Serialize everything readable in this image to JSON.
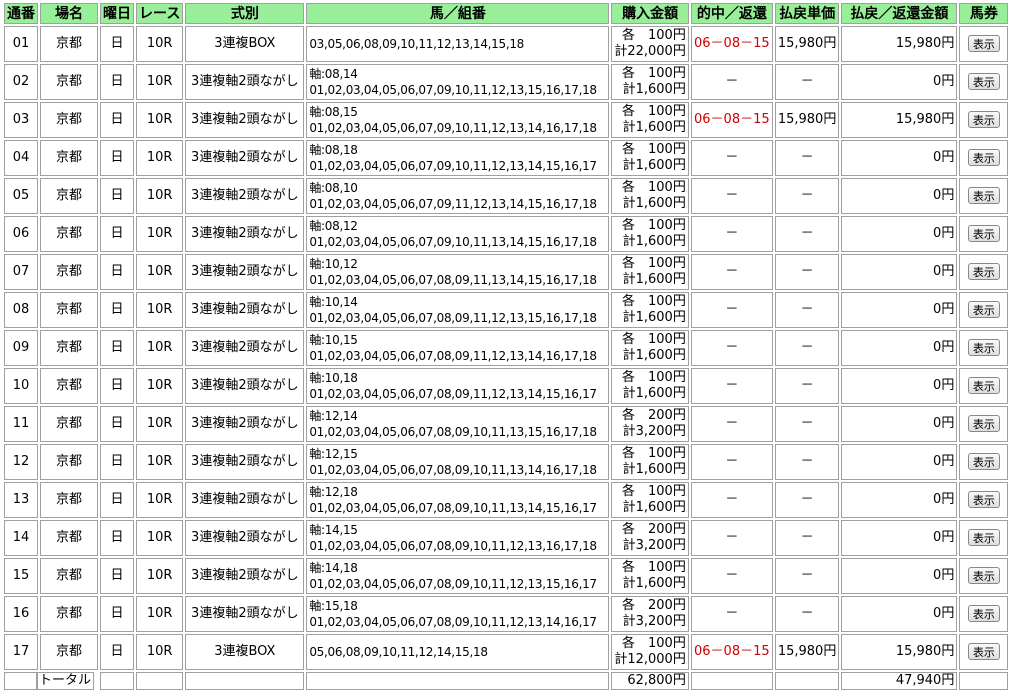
{
  "headers": [
    "通番",
    "場名",
    "曜日",
    "レース",
    "式別",
    "馬／組番",
    "購入金額",
    "的中／返還",
    "払戻単価",
    "払戻／返還金額",
    "馬券"
  ],
  "button_label": "表示",
  "rows": [
    {
      "no": "01",
      "place": "京都",
      "day": "日",
      "race": "10R",
      "type": "3連複BOX",
      "axis": "",
      "horses": "03,05,06,08,09,10,11,12,13,14,15,18",
      "each": "各　100円",
      "total": "計22,000円",
      "hit": "06－08－15",
      "unit": "15,980円",
      "payout": "15,980円"
    },
    {
      "no": "02",
      "place": "京都",
      "day": "日",
      "race": "10R",
      "type": "3連複軸2頭ながし",
      "axis": "軸:08,14",
      "horses": "01,02,03,04,05,06,07,09,10,11,12,13,15,16,17,18",
      "each": "各　100円",
      "total": "計1,600円",
      "hit": "－",
      "unit": "－",
      "payout": "0円"
    },
    {
      "no": "03",
      "place": "京都",
      "day": "日",
      "race": "10R",
      "type": "3連複軸2頭ながし",
      "axis": "軸:08,15",
      "horses": "01,02,03,04,05,06,07,09,10,11,12,13,14,16,17,18",
      "each": "各　100円",
      "total": "計1,600円",
      "hit": "06－08－15",
      "unit": "15,980円",
      "payout": "15,980円"
    },
    {
      "no": "04",
      "place": "京都",
      "day": "日",
      "race": "10R",
      "type": "3連複軸2頭ながし",
      "axis": "軸:08,18",
      "horses": "01,02,03,04,05,06,07,09,10,11,12,13,14,15,16,17",
      "each": "各　100円",
      "total": "計1,600円",
      "hit": "－",
      "unit": "－",
      "payout": "0円"
    },
    {
      "no": "05",
      "place": "京都",
      "day": "日",
      "race": "10R",
      "type": "3連複軸2頭ながし",
      "axis": "軸:08,10",
      "horses": "01,02,03,04,05,06,07,09,11,12,13,14,15,16,17,18",
      "each": "各　100円",
      "total": "計1,600円",
      "hit": "－",
      "unit": "－",
      "payout": "0円"
    },
    {
      "no": "06",
      "place": "京都",
      "day": "日",
      "race": "10R",
      "type": "3連複軸2頭ながし",
      "axis": "軸:08,12",
      "horses": "01,02,03,04,05,06,07,09,10,11,13,14,15,16,17,18",
      "each": "各　100円",
      "total": "計1,600円",
      "hit": "－",
      "unit": "－",
      "payout": "0円"
    },
    {
      "no": "07",
      "place": "京都",
      "day": "日",
      "race": "10R",
      "type": "3連複軸2頭ながし",
      "axis": "軸:10,12",
      "horses": "01,02,03,04,05,06,07,08,09,11,13,14,15,16,17,18",
      "each": "各　100円",
      "total": "計1,600円",
      "hit": "－",
      "unit": "－",
      "payout": "0円"
    },
    {
      "no": "08",
      "place": "京都",
      "day": "日",
      "race": "10R",
      "type": "3連複軸2頭ながし",
      "axis": "軸:10,14",
      "horses": "01,02,03,04,05,06,07,08,09,11,12,13,15,16,17,18",
      "each": "各　100円",
      "total": "計1,600円",
      "hit": "－",
      "unit": "－",
      "payout": "0円"
    },
    {
      "no": "09",
      "place": "京都",
      "day": "日",
      "race": "10R",
      "type": "3連複軸2頭ながし",
      "axis": "軸:10,15",
      "horses": "01,02,03,04,05,06,07,08,09,11,12,13,14,16,17,18",
      "each": "各　100円",
      "total": "計1,600円",
      "hit": "－",
      "unit": "－",
      "payout": "0円"
    },
    {
      "no": "10",
      "place": "京都",
      "day": "日",
      "race": "10R",
      "type": "3連複軸2頭ながし",
      "axis": "軸:10,18",
      "horses": "01,02,03,04,05,06,07,08,09,11,12,13,14,15,16,17",
      "each": "各　100円",
      "total": "計1,600円",
      "hit": "－",
      "unit": "－",
      "payout": "0円"
    },
    {
      "no": "11",
      "place": "京都",
      "day": "日",
      "race": "10R",
      "type": "3連複軸2頭ながし",
      "axis": "軸:12,14",
      "horses": "01,02,03,04,05,06,07,08,09,10,11,13,15,16,17,18",
      "each": "各　200円",
      "total": "計3,200円",
      "hit": "－",
      "unit": "－",
      "payout": "0円"
    },
    {
      "no": "12",
      "place": "京都",
      "day": "日",
      "race": "10R",
      "type": "3連複軸2頭ながし",
      "axis": "軸:12,15",
      "horses": "01,02,03,04,05,06,07,08,09,10,11,13,14,16,17,18",
      "each": "各　100円",
      "total": "計1,600円",
      "hit": "－",
      "unit": "－",
      "payout": "0円"
    },
    {
      "no": "13",
      "place": "京都",
      "day": "日",
      "race": "10R",
      "type": "3連複軸2頭ながし",
      "axis": "軸:12,18",
      "horses": "01,02,03,04,05,06,07,08,09,10,11,13,14,15,16,17",
      "each": "各　100円",
      "total": "計1,600円",
      "hit": "－",
      "unit": "－",
      "payout": "0円"
    },
    {
      "no": "14",
      "place": "京都",
      "day": "日",
      "race": "10R",
      "type": "3連複軸2頭ながし",
      "axis": "軸:14,15",
      "horses": "01,02,03,04,05,06,07,08,09,10,11,12,13,16,17,18",
      "each": "各　200円",
      "total": "計3,200円",
      "hit": "－",
      "unit": "－",
      "payout": "0円"
    },
    {
      "no": "15",
      "place": "京都",
      "day": "日",
      "race": "10R",
      "type": "3連複軸2頭ながし",
      "axis": "軸:14,18",
      "horses": "01,02,03,04,05,06,07,08,09,10,11,12,13,15,16,17",
      "each": "各　100円",
      "total": "計1,600円",
      "hit": "－",
      "unit": "－",
      "payout": "0円"
    },
    {
      "no": "16",
      "place": "京都",
      "day": "日",
      "race": "10R",
      "type": "3連複軸2頭ながし",
      "axis": "軸:15,18",
      "horses": "01,02,03,04,05,06,07,08,09,10,11,12,13,14,16,17",
      "each": "各　200円",
      "total": "計3,200円",
      "hit": "－",
      "unit": "－",
      "payout": "0円"
    },
    {
      "no": "17",
      "place": "京都",
      "day": "日",
      "race": "10R",
      "type": "3連複BOX",
      "axis": "",
      "horses": "05,06,08,09,10,11,12,14,15,18",
      "each": "各　100円",
      "total": "計12,000円",
      "hit": "06－08－15",
      "unit": "15,980円",
      "payout": "15,980円"
    }
  ],
  "total": {
    "label": "トータル",
    "purchase": "62,800円",
    "payout": "47,940円"
  },
  "colors": {
    "header_bg": "#99ee99",
    "hit_text": "#d00000"
  }
}
